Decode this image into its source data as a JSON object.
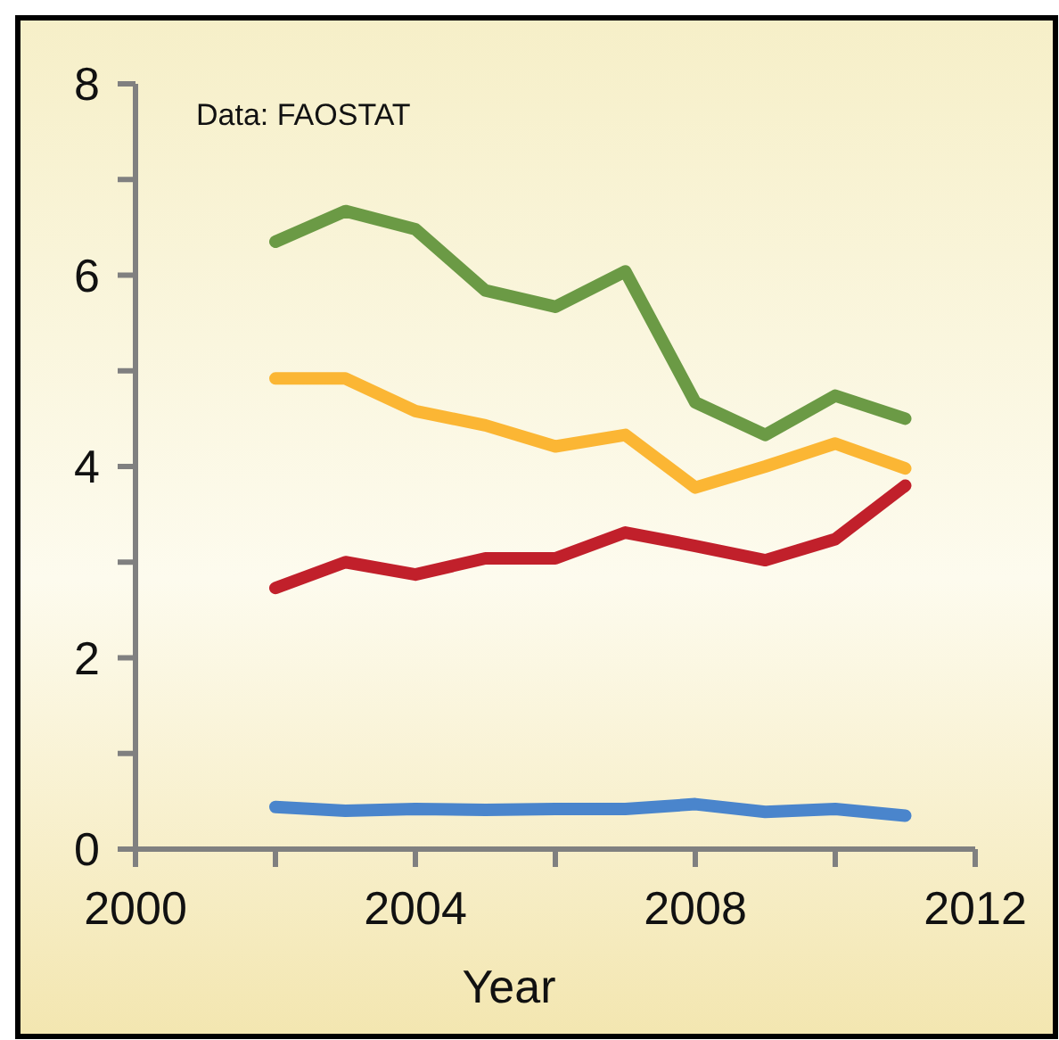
{
  "chart_data": {
    "type": "line",
    "xlabel": "Year",
    "annotations": [
      "Data: FAOSTAT"
    ],
    "x": [
      2002,
      2003,
      2004,
      2005,
      2006,
      2007,
      2008,
      2009,
      2010,
      2011
    ],
    "xlim": [
      2000,
      2012
    ],
    "xticks": [
      2000,
      {
        "value": 2002,
        "label": null
      },
      2004,
      {
        "value": 2006,
        "label": null
      },
      2008,
      {
        "value": 2010,
        "label": null
      },
      2012
    ],
    "ylim": [
      0,
      8
    ],
    "yticks": [
      0,
      {
        "value": 1,
        "label": null
      },
      2,
      {
        "value": 3,
        "label": null
      },
      4,
      {
        "value": 5,
        "label": null
      },
      6,
      {
        "value": 7,
        "label": null
      },
      8
    ],
    "grid": false,
    "marker": "none",
    "line_style": "solid",
    "series": [
      {
        "color": "#6b9a45",
        "values": [
          6.35,
          6.67,
          6.48,
          5.84,
          5.67,
          6.04,
          4.67,
          4.33,
          4.74,
          4.5
        ]
      },
      {
        "color": "#fbb634",
        "values": [
          4.92,
          4.92,
          4.58,
          4.43,
          4.21,
          4.33,
          3.78,
          4.0,
          4.24,
          3.98
        ]
      },
      {
        "color": "#c1202b",
        "values": [
          2.73,
          3.0,
          2.87,
          3.04,
          3.04,
          3.31,
          3.17,
          3.02,
          3.24,
          3.8
        ]
      },
      {
        "color": "#4a85cc",
        "values": [
          0.44,
          0.4,
          0.42,
          0.41,
          0.42,
          0.42,
          0.47,
          0.39,
          0.42,
          0.35
        ]
      }
    ]
  }
}
